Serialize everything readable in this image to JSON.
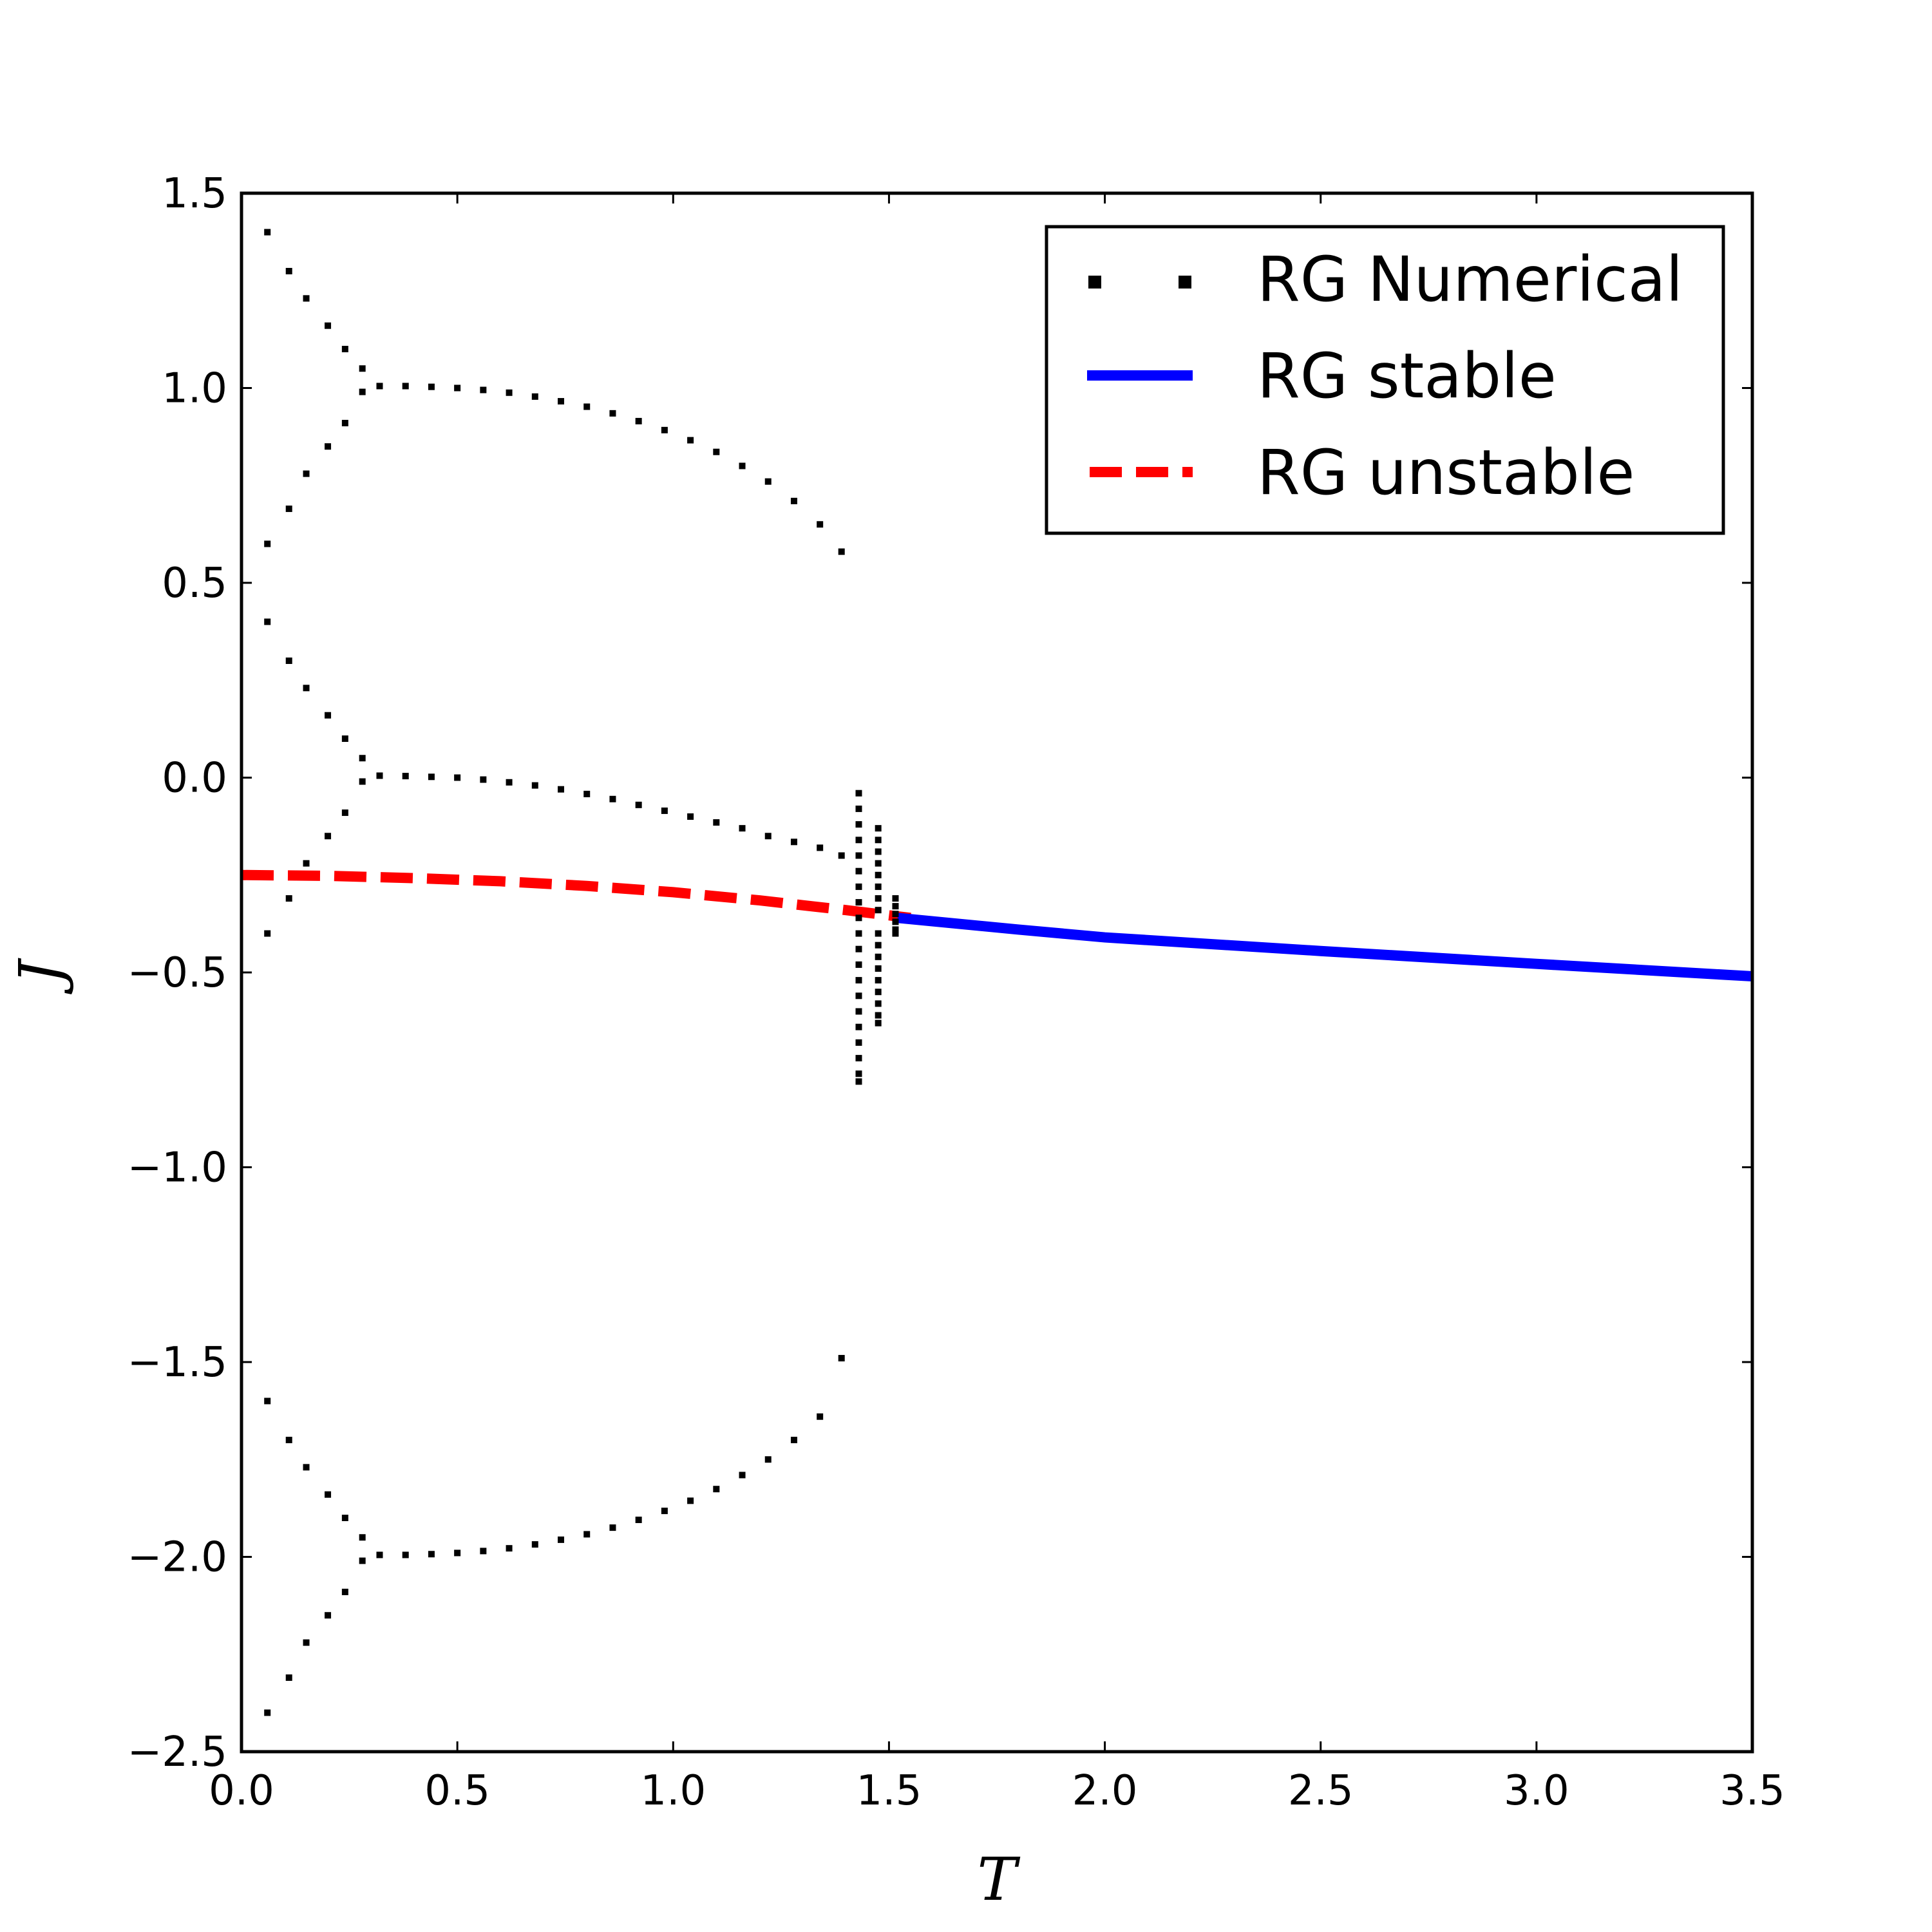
{
  "chart_data": {
    "type": "scatter",
    "xlabel": "T",
    "ylabel": "J",
    "xlim": [
      0.0,
      3.5
    ],
    "ylim": [
      -2.5,
      1.5
    ],
    "xticks": [
      "0.0",
      "0.5",
      "1.0",
      "1.5",
      "2.0",
      "2.5",
      "3.0",
      "3.5"
    ],
    "yticks": [
      "1.5",
      "1.0",
      "0.5",
      "0.0",
      "−0.5",
      "−1.0",
      "−1.5",
      "−2.0",
      "−2.5"
    ],
    "legend_placement": "upper-right",
    "legend": [
      {
        "label": "RG Numerical",
        "style": "dotted",
        "color": "#000000"
      },
      {
        "label": "RG stable",
        "style": "solid",
        "color": "#0000ff"
      },
      {
        "label": "RG unstable",
        "style": "dashed",
        "color": "#ff0000"
      }
    ],
    "series": [
      {
        "name": "RG Numerical",
        "kind": "scatter",
        "color": "#000000",
        "points": [
          [
            0.06,
            1.4
          ],
          [
            0.11,
            1.3
          ],
          [
            0.15,
            1.23
          ],
          [
            0.2,
            1.16
          ],
          [
            0.24,
            1.1
          ],
          [
            0.28,
            1.05
          ],
          [
            0.28,
            0.99
          ],
          [
            0.24,
            0.91
          ],
          [
            0.2,
            0.85
          ],
          [
            0.15,
            0.78
          ],
          [
            0.11,
            0.69
          ],
          [
            0.06,
            0.6
          ],
          [
            0.32,
            1.005
          ],
          [
            0.38,
            1.005
          ],
          [
            0.44,
            1.003
          ],
          [
            0.5,
            1.0
          ],
          [
            0.56,
            0.995
          ],
          [
            0.62,
            0.988
          ],
          [
            0.68,
            0.978
          ],
          [
            0.74,
            0.966
          ],
          [
            0.8,
            0.952
          ],
          [
            0.86,
            0.935
          ],
          [
            0.92,
            0.915
          ],
          [
            0.98,
            0.892
          ],
          [
            1.04,
            0.866
          ],
          [
            1.1,
            0.836
          ],
          [
            1.16,
            0.8
          ],
          [
            1.22,
            0.76
          ],
          [
            1.28,
            0.71
          ],
          [
            1.34,
            0.65
          ],
          [
            1.39,
            0.58
          ],
          [
            0.06,
            0.4
          ],
          [
            0.11,
            0.3
          ],
          [
            0.15,
            0.23
          ],
          [
            0.2,
            0.16
          ],
          [
            0.24,
            0.1
          ],
          [
            0.28,
            0.05
          ],
          [
            0.28,
            -0.01
          ],
          [
            0.24,
            -0.09
          ],
          [
            0.2,
            -0.15
          ],
          [
            0.15,
            -0.22
          ],
          [
            0.11,
            -0.31
          ],
          [
            0.06,
            -0.4
          ],
          [
            0.32,
            0.005
          ],
          [
            0.38,
            0.004
          ],
          [
            0.44,
            0.002
          ],
          [
            0.5,
            0.0
          ],
          [
            0.56,
            -0.005
          ],
          [
            0.62,
            -0.012
          ],
          [
            0.68,
            -0.02
          ],
          [
            0.74,
            -0.03
          ],
          [
            0.8,
            -0.042
          ],
          [
            0.86,
            -0.055
          ],
          [
            0.92,
            -0.07
          ],
          [
            0.98,
            -0.085
          ],
          [
            1.04,
            -0.1
          ],
          [
            1.1,
            -0.115
          ],
          [
            1.16,
            -0.13
          ],
          [
            1.22,
            -0.15
          ],
          [
            1.28,
            -0.165
          ],
          [
            1.34,
            -0.18
          ],
          [
            1.39,
            -0.2
          ],
          [
            0.06,
            -1.6
          ],
          [
            0.11,
            -1.7
          ],
          [
            0.15,
            -1.77
          ],
          [
            0.2,
            -1.84
          ],
          [
            0.24,
            -1.9
          ],
          [
            0.28,
            -1.95
          ],
          [
            0.28,
            -2.01
          ],
          [
            0.24,
            -2.09
          ],
          [
            0.2,
            -2.15
          ],
          [
            0.15,
            -2.22
          ],
          [
            0.11,
            -2.31
          ],
          [
            0.06,
            -2.4
          ],
          [
            0.32,
            -1.995
          ],
          [
            0.38,
            -1.995
          ],
          [
            0.44,
            -1.993
          ],
          [
            0.5,
            -1.99
          ],
          [
            0.56,
            -1.985
          ],
          [
            0.62,
            -1.978
          ],
          [
            0.68,
            -1.968
          ],
          [
            0.74,
            -1.956
          ],
          [
            0.8,
            -1.942
          ],
          [
            0.86,
            -1.925
          ],
          [
            0.92,
            -1.905
          ],
          [
            0.98,
            -1.882
          ],
          [
            1.04,
            -1.856
          ],
          [
            1.1,
            -1.826
          ],
          [
            1.16,
            -1.79
          ],
          [
            1.22,
            -1.75
          ],
          [
            1.28,
            -1.7
          ],
          [
            1.34,
            -1.64
          ],
          [
            1.39,
            -1.49
          ],
          [
            1.43,
            -0.04
          ],
          [
            1.43,
            -0.08
          ],
          [
            1.43,
            -0.12
          ],
          [
            1.43,
            -0.16
          ],
          [
            1.43,
            -0.2
          ],
          [
            1.43,
            -0.24
          ],
          [
            1.43,
            -0.28
          ],
          [
            1.43,
            -0.32
          ],
          [
            1.43,
            -0.36
          ],
          [
            1.43,
            -0.4
          ],
          [
            1.43,
            -0.44
          ],
          [
            1.43,
            -0.48
          ],
          [
            1.43,
            -0.52
          ],
          [
            1.43,
            -0.56
          ],
          [
            1.43,
            -0.6
          ],
          [
            1.43,
            -0.64
          ],
          [
            1.43,
            -0.68
          ],
          [
            1.43,
            -0.72
          ],
          [
            1.43,
            -0.76
          ],
          [
            1.43,
            -0.78
          ],
          [
            1.475,
            -0.13
          ],
          [
            1.475,
            -0.16
          ],
          [
            1.475,
            -0.19
          ],
          [
            1.475,
            -0.22
          ],
          [
            1.475,
            -0.25
          ],
          [
            1.475,
            -0.28
          ],
          [
            1.475,
            -0.31
          ],
          [
            1.475,
            -0.34
          ],
          [
            1.475,
            -0.4
          ],
          [
            1.475,
            -0.43
          ],
          [
            1.475,
            -0.46
          ],
          [
            1.475,
            -0.49
          ],
          [
            1.475,
            -0.52
          ],
          [
            1.475,
            -0.55
          ],
          [
            1.475,
            -0.58
          ],
          [
            1.475,
            -0.61
          ],
          [
            1.475,
            -0.63
          ],
          [
            1.515,
            -0.31
          ],
          [
            1.515,
            -0.33
          ],
          [
            1.515,
            -0.35
          ],
          [
            1.515,
            -0.37
          ],
          [
            1.515,
            -0.39
          ],
          [
            1.515,
            -0.4
          ]
        ]
      },
      {
        "name": "RG stable",
        "kind": "line",
        "color": "#0000ff",
        "x": [
          1.52,
          1.8,
          2.0,
          2.5,
          3.0,
          3.5
        ],
        "y": [
          -0.36,
          -0.39,
          -0.41,
          -0.445,
          -0.478,
          -0.51
        ]
      },
      {
        "name": "RG unstable",
        "kind": "line",
        "color": "#ff0000",
        "x": [
          0.0,
          0.2,
          0.4,
          0.6,
          0.8,
          1.0,
          1.2,
          1.4,
          1.55
        ],
        "y": [
          -0.25,
          -0.252,
          -0.258,
          -0.266,
          -0.278,
          -0.294,
          -0.315,
          -0.34,
          -0.36
        ]
      }
    ]
  }
}
